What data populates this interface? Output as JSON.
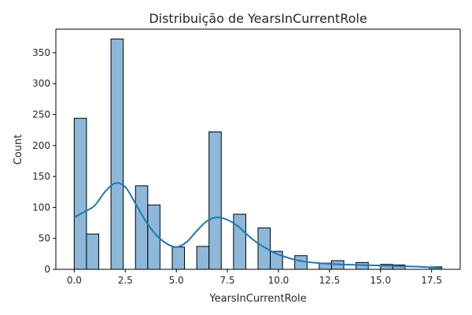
{
  "chart_data": {
    "type": "bar",
    "title": "Distribuição de YearsInCurrentRole",
    "xlabel": "YearsInCurrentRole",
    "ylabel": "Count",
    "xlim": [
      -0.9,
      18.9
    ],
    "ylim": [
      0,
      388
    ],
    "xticks": [
      0.0,
      2.5,
      5.0,
      7.5,
      10.0,
      12.5,
      15.0,
      17.5
    ],
    "xtick_labels": [
      "0.0",
      "2.5",
      "5.0",
      "7.5",
      "10.0",
      "12.5",
      "15.0",
      "17.5"
    ],
    "yticks": [
      0,
      50,
      100,
      150,
      200,
      250,
      300,
      350
    ],
    "ytick_labels": [
      "0",
      "50",
      "100",
      "150",
      "200",
      "250",
      "300",
      "350"
    ],
    "bin_width": 0.6,
    "bins": [
      {
        "x0": 0.0,
        "count": 244
      },
      {
        "x0": 0.6,
        "count": 57
      },
      {
        "x0": 1.8,
        "count": 372
      },
      {
        "x0": 3.0,
        "count": 135
      },
      {
        "x0": 3.6,
        "count": 104
      },
      {
        "x0": 4.8,
        "count": 36
      },
      {
        "x0": 6.0,
        "count": 37
      },
      {
        "x0": 6.6,
        "count": 222
      },
      {
        "x0": 7.8,
        "count": 89
      },
      {
        "x0": 9.0,
        "count": 67
      },
      {
        "x0": 9.6,
        "count": 29
      },
      {
        "x0": 10.8,
        "count": 22
      },
      {
        "x0": 12.0,
        "count": 10
      },
      {
        "x0": 12.6,
        "count": 14
      },
      {
        "x0": 13.8,
        "count": 11
      },
      {
        "x0": 15.0,
        "count": 8
      },
      {
        "x0": 15.6,
        "count": 7
      },
      {
        "x0": 17.4,
        "count": 4
      }
    ],
    "kde": {
      "x": [
        0.0,
        0.5,
        1.0,
        1.5,
        2.0,
        2.5,
        3.0,
        3.5,
        4.0,
        4.5,
        5.0,
        5.5,
        6.0,
        6.5,
        7.0,
        7.5,
        8.0,
        8.5,
        9.0,
        9.5,
        10.0,
        11.0,
        12.0,
        13.0,
        14.0,
        15.0,
        16.0,
        17.0,
        18.0
      ],
      "y": [
        84,
        93,
        103,
        125,
        139,
        133,
        106,
        78,
        56,
        42,
        36,
        44,
        62,
        78,
        84,
        80,
        70,
        55,
        42,
        32,
        24,
        14,
        10,
        8,
        7,
        6,
        5,
        4,
        2
      ]
    },
    "colors": {
      "bar_fill": "#8db8da",
      "bar_edge": "#000000",
      "kde_line": "#1f77b4",
      "axis": "#000000",
      "text": "#262626"
    },
    "grid": false,
    "legend": "none"
  }
}
